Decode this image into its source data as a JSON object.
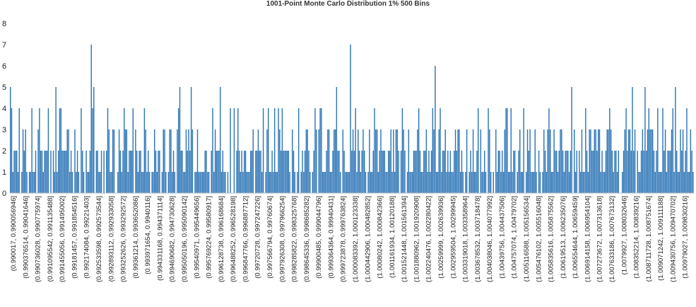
{
  "chart_data": {
    "type": "bar",
    "title": "1001-Point Monte Carlo Distribution 1% 500 Bins",
    "xlabel": "",
    "ylabel": "",
    "ylim": [
      0,
      8
    ],
    "yticks": [
      0,
      1,
      2,
      3,
      4,
      5,
      6,
      7,
      8
    ],
    "grid": false,
    "legend": "none",
    "bar_color": "#2e75b6",
    "axis_color": "#bfbfbf",
    "x_tick_labels": [
      "(0.990017, 0.990056946]",
      "(0.990376514, 0.99041646]",
      "(0.990736028, 0.990775974]",
      "(0.991095542, 0.991135488]",
      "(0.991455056, 0.991495002]",
      "(0.99181457, 0.991854516]",
      "(0.992174084, 0.99221403]",
      "(0.992533598, 0.992573544]",
      "(0.992893112, 0.992933058]",
      "(0.993252626, 0.993292572]",
      "(0.99361214, 0.993652086]",
      "(0.993971654, 0.9940116]",
      "(0.994331168, 0.994371114]",
      "(0.994690682, 0.994730628]",
      "(0.995050196, 0.995090142]",
      "(0.99540971, 0.995449656]",
      "(0.995769224, 0.99580917]",
      "(0.996128738, 0.996168684]",
      "(0.996488252, 0.996528198]",
      "(0.996847766, 0.996887712]",
      "(0.99720728, 0.997247226]",
      "(0.997566794, 0.99760674]",
      "(0.997926308, 0.997966254]",
      "(0.998285822, 0.998325768]",
      "(0.998645336, 0.998685282]",
      "(0.99900485, 0.999044796]",
      "(0.999364364, 0.99940431]",
      "(0.999723878, 0.999763824]",
      "(1.000083392, 1.000123338]",
      "(1.000442906, 1.000482852]",
      "(1.00080242, 1.000842366]",
      "(1.001161934, 1.00120188]",
      "(1.001521448, 1.001561394]",
      "(1.001880962, 1.001920908]",
      "(1.002240476, 1.002280422]",
      "(1.00259999, 1.002639936]",
      "(1.002959504, 1.00299945]",
      "(1.003319018, 1.003358964]",
      "(1.003678532, 1.003718478]",
      "(1.004038046, 1.004077992]",
      "(1.00439756, 1.004437506]",
      "(1.004757074, 1.00479702]",
      "(1.005116588, 1.005156534]",
      "(1.005476102, 1.005516048]",
      "(1.005835616, 1.005875562]",
      "(1.00619513, 1.006235076]",
      "(1.006554644, 1.00659459]",
      "(1.006914158, 1.006954104]",
      "(1.007273672, 1.007313618]",
      "(1.007633186, 1.007673132]",
      "(1.0079927, 1.008032646]",
      "(1.008352214, 1.00839216]",
      "(1.008711728, 1.008751674]",
      "(1.009071242, 1.009111188]",
      "(1.009430756, 1.009470702]",
      "(1.00979027, 1.009830216]"
    ],
    "values": [
      5,
      4,
      1,
      2,
      2,
      2,
      1,
      4,
      0,
      1,
      3,
      2,
      3,
      1,
      0,
      1,
      1,
      4,
      1,
      1,
      2,
      0,
      3,
      4,
      2,
      2,
      1,
      2,
      2,
      2,
      4,
      0,
      2,
      0,
      2,
      1,
      5,
      1,
      2,
      4,
      4,
      2,
      2,
      2,
      2,
      3,
      3,
      1,
      2,
      1,
      0,
      3,
      1,
      2,
      1,
      0,
      4,
      2,
      1,
      0,
      2,
      1,
      1,
      2,
      7,
      4,
      5,
      0,
      2,
      2,
      1,
      1,
      2,
      0,
      2,
      0,
      2,
      4,
      3,
      1,
      1,
      3,
      3,
      0,
      0,
      1,
      3,
      2,
      1,
      2,
      4,
      3,
      3,
      1,
      2,
      2,
      2,
      4,
      0,
      3,
      2,
      1,
      2,
      2,
      1,
      1,
      4,
      3,
      1,
      2,
      1,
      0,
      1,
      1,
      3,
      2,
      1,
      2,
      2,
      0,
      1,
      3,
      3,
      1,
      0,
      1,
      3,
      3,
      1,
      2,
      1,
      0,
      3,
      4,
      5,
      2,
      2,
      1,
      1,
      3,
      2,
      3,
      2,
      5,
      3,
      0,
      1,
      1,
      3,
      1,
      1,
      1,
      1,
      1,
      2,
      2,
      1,
      1,
      0,
      2,
      4,
      1,
      3,
      2,
      2,
      2,
      5,
      1,
      2,
      1,
      1,
      0,
      1,
      0,
      4,
      0,
      0,
      4,
      0,
      2,
      4,
      2,
      1,
      2,
      1,
      2,
      2,
      1,
      1,
      1,
      2,
      2,
      3,
      0,
      2,
      2,
      3,
      2,
      2,
      1,
      4,
      0,
      1,
      3,
      4,
      1,
      1,
      2,
      1,
      4,
      1,
      1,
      4,
      3,
      2,
      4,
      2,
      2,
      2,
      2,
      2,
      1,
      0,
      3,
      2,
      1,
      0,
      1,
      4,
      0,
      1,
      2,
      1,
      2,
      3,
      3,
      2,
      1,
      0,
      1,
      2,
      4,
      3,
      0,
      3,
      4,
      4,
      1,
      1,
      1,
      2,
      3,
      3,
      1,
      1,
      2,
      3,
      3,
      5,
      2,
      2,
      1,
      0,
      3,
      2,
      1,
      1,
      1,
      1,
      7,
      2,
      3,
      2,
      4,
      1,
      3,
      2,
      1,
      2,
      3,
      2,
      1,
      0,
      1,
      3,
      1,
      1,
      2,
      4,
      3,
      3,
      1,
      2,
      3,
      2,
      2,
      2,
      1,
      1,
      2,
      2,
      3,
      1,
      3,
      1,
      3,
      3,
      2,
      0,
      2,
      4,
      3,
      2,
      0,
      1,
      3,
      1,
      1,
      1,
      2,
      2,
      2,
      3,
      4,
      2,
      1,
      1,
      2,
      2,
      3,
      1,
      2,
      1,
      2,
      4,
      3,
      6,
      1,
      1,
      3,
      4,
      1,
      2,
      2,
      3,
      1,
      2,
      1,
      2,
      1,
      1,
      2,
      3,
      2,
      3,
      3,
      1,
      2,
      1,
      0,
      1,
      3,
      0,
      1,
      2,
      1,
      3,
      1,
      1,
      2,
      4,
      0,
      3,
      1,
      1,
      2,
      1,
      0,
      4,
      3,
      1,
      0,
      1,
      0,
      3,
      1,
      2,
      2,
      1,
      2,
      1,
      3,
      4,
      4,
      1,
      1,
      4,
      1,
      2,
      2,
      0,
      1,
      2,
      3,
      1,
      1,
      4,
      0,
      1,
      3,
      2,
      3,
      1,
      1,
      1,
      3,
      1,
      0,
      2,
      1,
      0,
      1,
      3,
      2,
      1,
      3,
      4,
      3,
      1,
      1,
      3,
      2,
      2,
      1,
      2,
      3,
      3,
      2,
      1,
      2,
      2,
      2,
      1,
      2,
      5,
      0,
      3,
      1,
      2,
      0,
      2,
      1,
      3,
      1,
      1,
      4,
      2,
      1,
      3,
      3,
      2,
      2,
      3,
      3,
      2,
      3,
      3,
      1,
      2,
      1,
      1,
      2,
      3,
      3,
      4,
      3,
      2,
      1,
      2,
      2,
      1,
      2,
      0,
      0,
      1,
      2,
      3,
      4,
      2,
      3,
      3,
      2,
      5,
      2,
      3,
      0,
      2,
      1,
      1,
      2,
      3,
      2,
      5,
      2,
      3,
      4,
      3,
      3,
      3,
      2,
      1,
      2,
      4,
      1,
      1,
      1,
      4,
      2,
      3,
      1,
      2,
      2,
      2,
      3,
      4,
      1,
      5,
      2,
      1,
      1,
      3,
      2,
      3,
      1,
      2,
      4,
      1,
      1,
      3,
      2,
      1
    ]
  }
}
